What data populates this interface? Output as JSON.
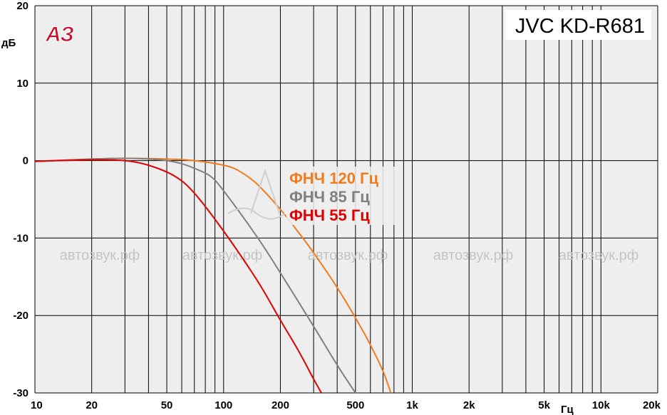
{
  "chart_data": {
    "type": "line",
    "title": "JVC KD-R681",
    "xlabel": "Гц",
    "ylabel": "дБ",
    "xscale": "log",
    "xlim": [
      10,
      20000
    ],
    "ylim": [
      -30,
      20
    ],
    "grid": true,
    "legend_position": "center",
    "x_tick_labels": [
      {
        "value": 10,
        "label": "10"
      },
      {
        "value": 20,
        "label": "20"
      },
      {
        "value": 50,
        "label": "50"
      },
      {
        "value": 100,
        "label": "100"
      },
      {
        "value": 200,
        "label": "200"
      },
      {
        "value": 500,
        "label": "500"
      },
      {
        "value": 1000,
        "label": "1k"
      },
      {
        "value": 2000,
        "label": "2k"
      },
      {
        "value": 5000,
        "label": "5k"
      },
      {
        "value": 10000,
        "label": "10k"
      },
      {
        "value": 20000,
        "label": "20k"
      }
    ],
    "y_ticks": [
      20,
      10,
      0,
      -10,
      -20,
      -30
    ],
    "series": [
      {
        "name": "ФНЧ 120 Гц",
        "color": "#f07c1e",
        "x": [
          10,
          20,
          30,
          50,
          70,
          100,
          120,
          150,
          200,
          250,
          300,
          400,
          500,
          600,
          700,
          770
        ],
        "y": [
          -0.1,
          0.2,
          0.3,
          0.2,
          0.0,
          -0.6,
          -1.3,
          -3.0,
          -6.3,
          -9.3,
          -11.9,
          -16.4,
          -20.3,
          -23.8,
          -27.2,
          -30
        ]
      },
      {
        "name": "ФНЧ 85 Гц",
        "color": "#808080",
        "x": [
          10,
          20,
          30,
          40,
          50,
          60,
          70,
          85,
          100,
          150,
          200,
          300,
          400,
          500
        ],
        "y": [
          -0.1,
          0.2,
          0.3,
          0.2,
          0.0,
          -0.4,
          -1.0,
          -2.0,
          -3.9,
          -9.8,
          -14.5,
          -21.4,
          -26.4,
          -30
        ]
      },
      {
        "name": "ФНЧ 55 Гц",
        "color": "#e00000",
        "x": [
          10,
          20,
          30,
          40,
          55,
          70,
          100,
          150,
          200,
          250,
          300,
          330
        ],
        "y": [
          -0.1,
          0.1,
          0.0,
          -0.6,
          -2.0,
          -4.2,
          -9.1,
          -15.4,
          -20.6,
          -24.6,
          -28.2,
          -30
        ]
      }
    ],
    "watermarks": [
      "автозвук.рф",
      "автозвук.рф",
      "автозвук.рф",
      "автозвук.рф",
      "автозвук.рф"
    ],
    "logo_text": "АЗ"
  },
  "colors": {
    "plot_background": "#eeeeee",
    "grid": "#000000",
    "logo": "#c8102e"
  }
}
